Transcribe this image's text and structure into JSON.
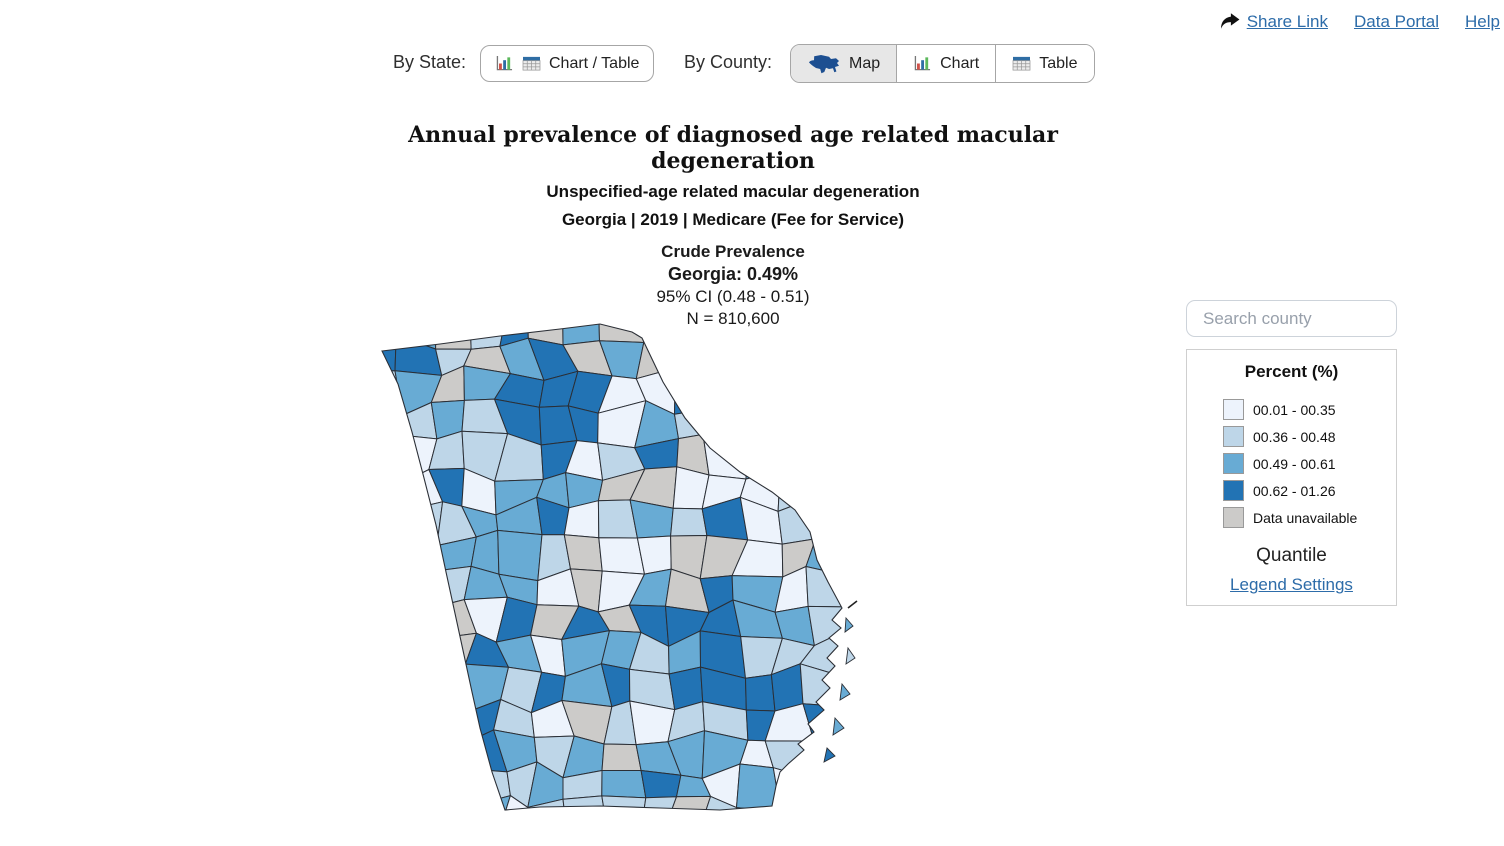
{
  "header": {
    "share_link": "Share Link",
    "data_portal": "Data Portal",
    "help": "Help"
  },
  "controls": {
    "by_state_label": "By State:",
    "chart_table_button": "Chart / Table",
    "by_county_label": "By County:",
    "map_button": "Map",
    "chart_button": "Chart",
    "table_button": "Table"
  },
  "titles": {
    "main": "Annual prevalence of diagnosed age related macular degeneration",
    "subtitle": "Unspecified-age related macular degeneration",
    "filters": "Georgia | 2019 | Medicare (Fee for Service)",
    "measure": "Crude Prevalence",
    "state_value": "Georgia: 0.49%",
    "confidence": "95% CI (0.48 - 0.51)",
    "sample": "N = 810,600"
  },
  "search": {
    "placeholder": "Search county"
  },
  "legend": {
    "title": "Percent (%)",
    "items": [
      {
        "label": "00.01 - 00.35",
        "color": "#edf3fc"
      },
      {
        "label": "00.36 - 00.48",
        "color": "#bed6e8"
      },
      {
        "label": "00.49 - 00.61",
        "color": "#68abd4"
      },
      {
        "label": "00.62 - 01.26",
        "color": "#2273b4"
      },
      {
        "label": "Data unavailable",
        "color": "#cccbc9"
      }
    ],
    "classification": "Quantile",
    "settings_link": "Legend Settings"
  },
  "colors": {
    "link": "#2d6ca9",
    "county_border": "#2b2f36",
    "active_button_bg": "#e7e7e7"
  },
  "chart_data": {
    "type": "choropleth_map",
    "region": "Georgia counties",
    "measure": "Crude Prevalence (%)",
    "classification": "Quantile",
    "classes": [
      {
        "range": "00.01 - 00.35",
        "color": "#edf3fc"
      },
      {
        "range": "00.36 - 00.48",
        "color": "#bed6e8"
      },
      {
        "range": "00.49 - 00.61",
        "color": "#68abd4"
      },
      {
        "range": "00.62 - 01.26",
        "color": "#2273b4"
      },
      {
        "range": "Data unavailable",
        "color": "#cccbc9"
      }
    ],
    "state_summary": {
      "state": "Georgia",
      "year": "2019",
      "source": "Medicare (Fee for Service)",
      "value_pct": 0.49,
      "ci_low": 0.48,
      "ci_high": 0.51,
      "n": 810600
    }
  }
}
